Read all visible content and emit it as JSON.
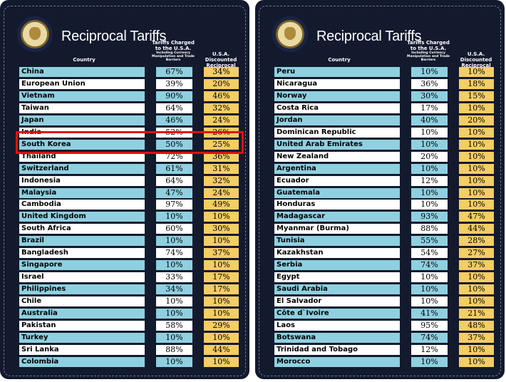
{
  "panels": [
    {
      "title": "Reciprocal Tariffs",
      "headers": {
        "country": "Country",
        "charged": "Tariffs Charged to the U.S.A.",
        "charged_sub": "Including Currency Manipulation and Trade Barriers",
        "discounted": "U.S.A. Discounted Reciprocal Tariffs"
      },
      "rows": [
        {
          "country": "China",
          "charged": "67%",
          "discounted": "34%"
        },
        {
          "country": "European Union",
          "charged": "39%",
          "discounted": "20%"
        },
        {
          "country": "Vietnam",
          "charged": "90%",
          "discounted": "46%"
        },
        {
          "country": "Taiwan",
          "charged": "64%",
          "discounted": "32%"
        },
        {
          "country": "Japan",
          "charged": "46%",
          "discounted": "24%"
        },
        {
          "country": "India",
          "charged": "52%",
          "discounted": "26%"
        },
        {
          "country": "South Korea",
          "charged": "50%",
          "discounted": "25%"
        },
        {
          "country": "Thailand",
          "charged": "72%",
          "discounted": "36%"
        },
        {
          "country": "Switzerland",
          "charged": "61%",
          "discounted": "31%"
        },
        {
          "country": "Indonesia",
          "charged": "64%",
          "discounted": "32%"
        },
        {
          "country": "Malaysia",
          "charged": "47%",
          "discounted": "24%"
        },
        {
          "country": "Cambodia",
          "charged": "97%",
          "discounted": "49%"
        },
        {
          "country": "United Kingdom",
          "charged": "10%",
          "discounted": "10%"
        },
        {
          "country": "South Africa",
          "charged": "60%",
          "discounted": "30%"
        },
        {
          "country": "Brazil",
          "charged": "10%",
          "discounted": "10%"
        },
        {
          "country": "Bangladesh",
          "charged": "74%",
          "discounted": "37%"
        },
        {
          "country": "Singapore",
          "charged": "10%",
          "discounted": "10%"
        },
        {
          "country": "Israel",
          "charged": "33%",
          "discounted": "17%"
        },
        {
          "country": "Philippines",
          "charged": "34%",
          "discounted": "17%"
        },
        {
          "country": "Chile",
          "charged": "10%",
          "discounted": "10%"
        },
        {
          "country": "Australia",
          "charged": "10%",
          "discounted": "10%"
        },
        {
          "country": "Pakistan",
          "charged": "58%",
          "discounted": "29%"
        },
        {
          "country": "Turkey",
          "charged": "10%",
          "discounted": "10%"
        },
        {
          "country": "Sri Lanka",
          "charged": "88%",
          "discounted": "44%"
        },
        {
          "country": "Colombia",
          "charged": "10%",
          "discounted": "10%"
        }
      ]
    },
    {
      "title": "Reciprocal Tariffs",
      "headers": {
        "country": "Country",
        "charged": "Tariffs Charged to the U.S.A.",
        "charged_sub": "Including Currency Manipulation and Trade Barriers",
        "discounted": "U.S.A. Discounted Reciprocal Tariffs"
      },
      "rows": [
        {
          "country": "Peru",
          "charged": "10%",
          "discounted": "10%"
        },
        {
          "country": "Nicaragua",
          "charged": "36%",
          "discounted": "18%"
        },
        {
          "country": "Norway",
          "charged": "30%",
          "discounted": "15%"
        },
        {
          "country": "Costa Rica",
          "charged": "17%",
          "discounted": "10%"
        },
        {
          "country": "Jordan",
          "charged": "40%",
          "discounted": "20%"
        },
        {
          "country": "Dominican Republic",
          "charged": "10%",
          "discounted": "10%"
        },
        {
          "country": "United Arab Emirates",
          "charged": "10%",
          "discounted": "10%"
        },
        {
          "country": "New Zealand",
          "charged": "20%",
          "discounted": "10%"
        },
        {
          "country": "Argentina",
          "charged": "10%",
          "discounted": "10%"
        },
        {
          "country": "Ecuador",
          "charged": "12%",
          "discounted": "10%"
        },
        {
          "country": "Guatemala",
          "charged": "10%",
          "discounted": "10%"
        },
        {
          "country": "Honduras",
          "charged": "10%",
          "discounted": "10%"
        },
        {
          "country": "Madagascar",
          "charged": "93%",
          "discounted": "47%"
        },
        {
          "country": "Myanmar (Burma)",
          "charged": "88%",
          "discounted": "44%"
        },
        {
          "country": "Tunisia",
          "charged": "55%",
          "discounted": "28%"
        },
        {
          "country": "Kazakhstan",
          "charged": "54%",
          "discounted": "27%"
        },
        {
          "country": "Serbia",
          "charged": "74%",
          "discounted": "37%"
        },
        {
          "country": "Egypt",
          "charged": "10%",
          "discounted": "10%"
        },
        {
          "country": "Saudi Arabia",
          "charged": "10%",
          "discounted": "10%"
        },
        {
          "country": "El Salvador",
          "charged": "10%",
          "discounted": "10%"
        },
        {
          "country": "Côte d`Ivoire",
          "charged": "41%",
          "discounted": "21%"
        },
        {
          "country": "Laos",
          "charged": "95%",
          "discounted": "48%"
        },
        {
          "country": "Botswana",
          "charged": "74%",
          "discounted": "37%"
        },
        {
          "country": "Trinidad and Tobago",
          "charged": "12%",
          "discounted": "10%"
        },
        {
          "country": "Morocco",
          "charged": "10%",
          "discounted": "10%"
        }
      ]
    }
  ],
  "colors": {
    "panel_bg": "#131a2e",
    "row_blue": "#8fd0e0",
    "row_white": "#ffffff",
    "discount_cell": "#f4cd63",
    "highlight": "#e01010"
  },
  "highlight": {
    "panel": 0,
    "row": 6
  }
}
